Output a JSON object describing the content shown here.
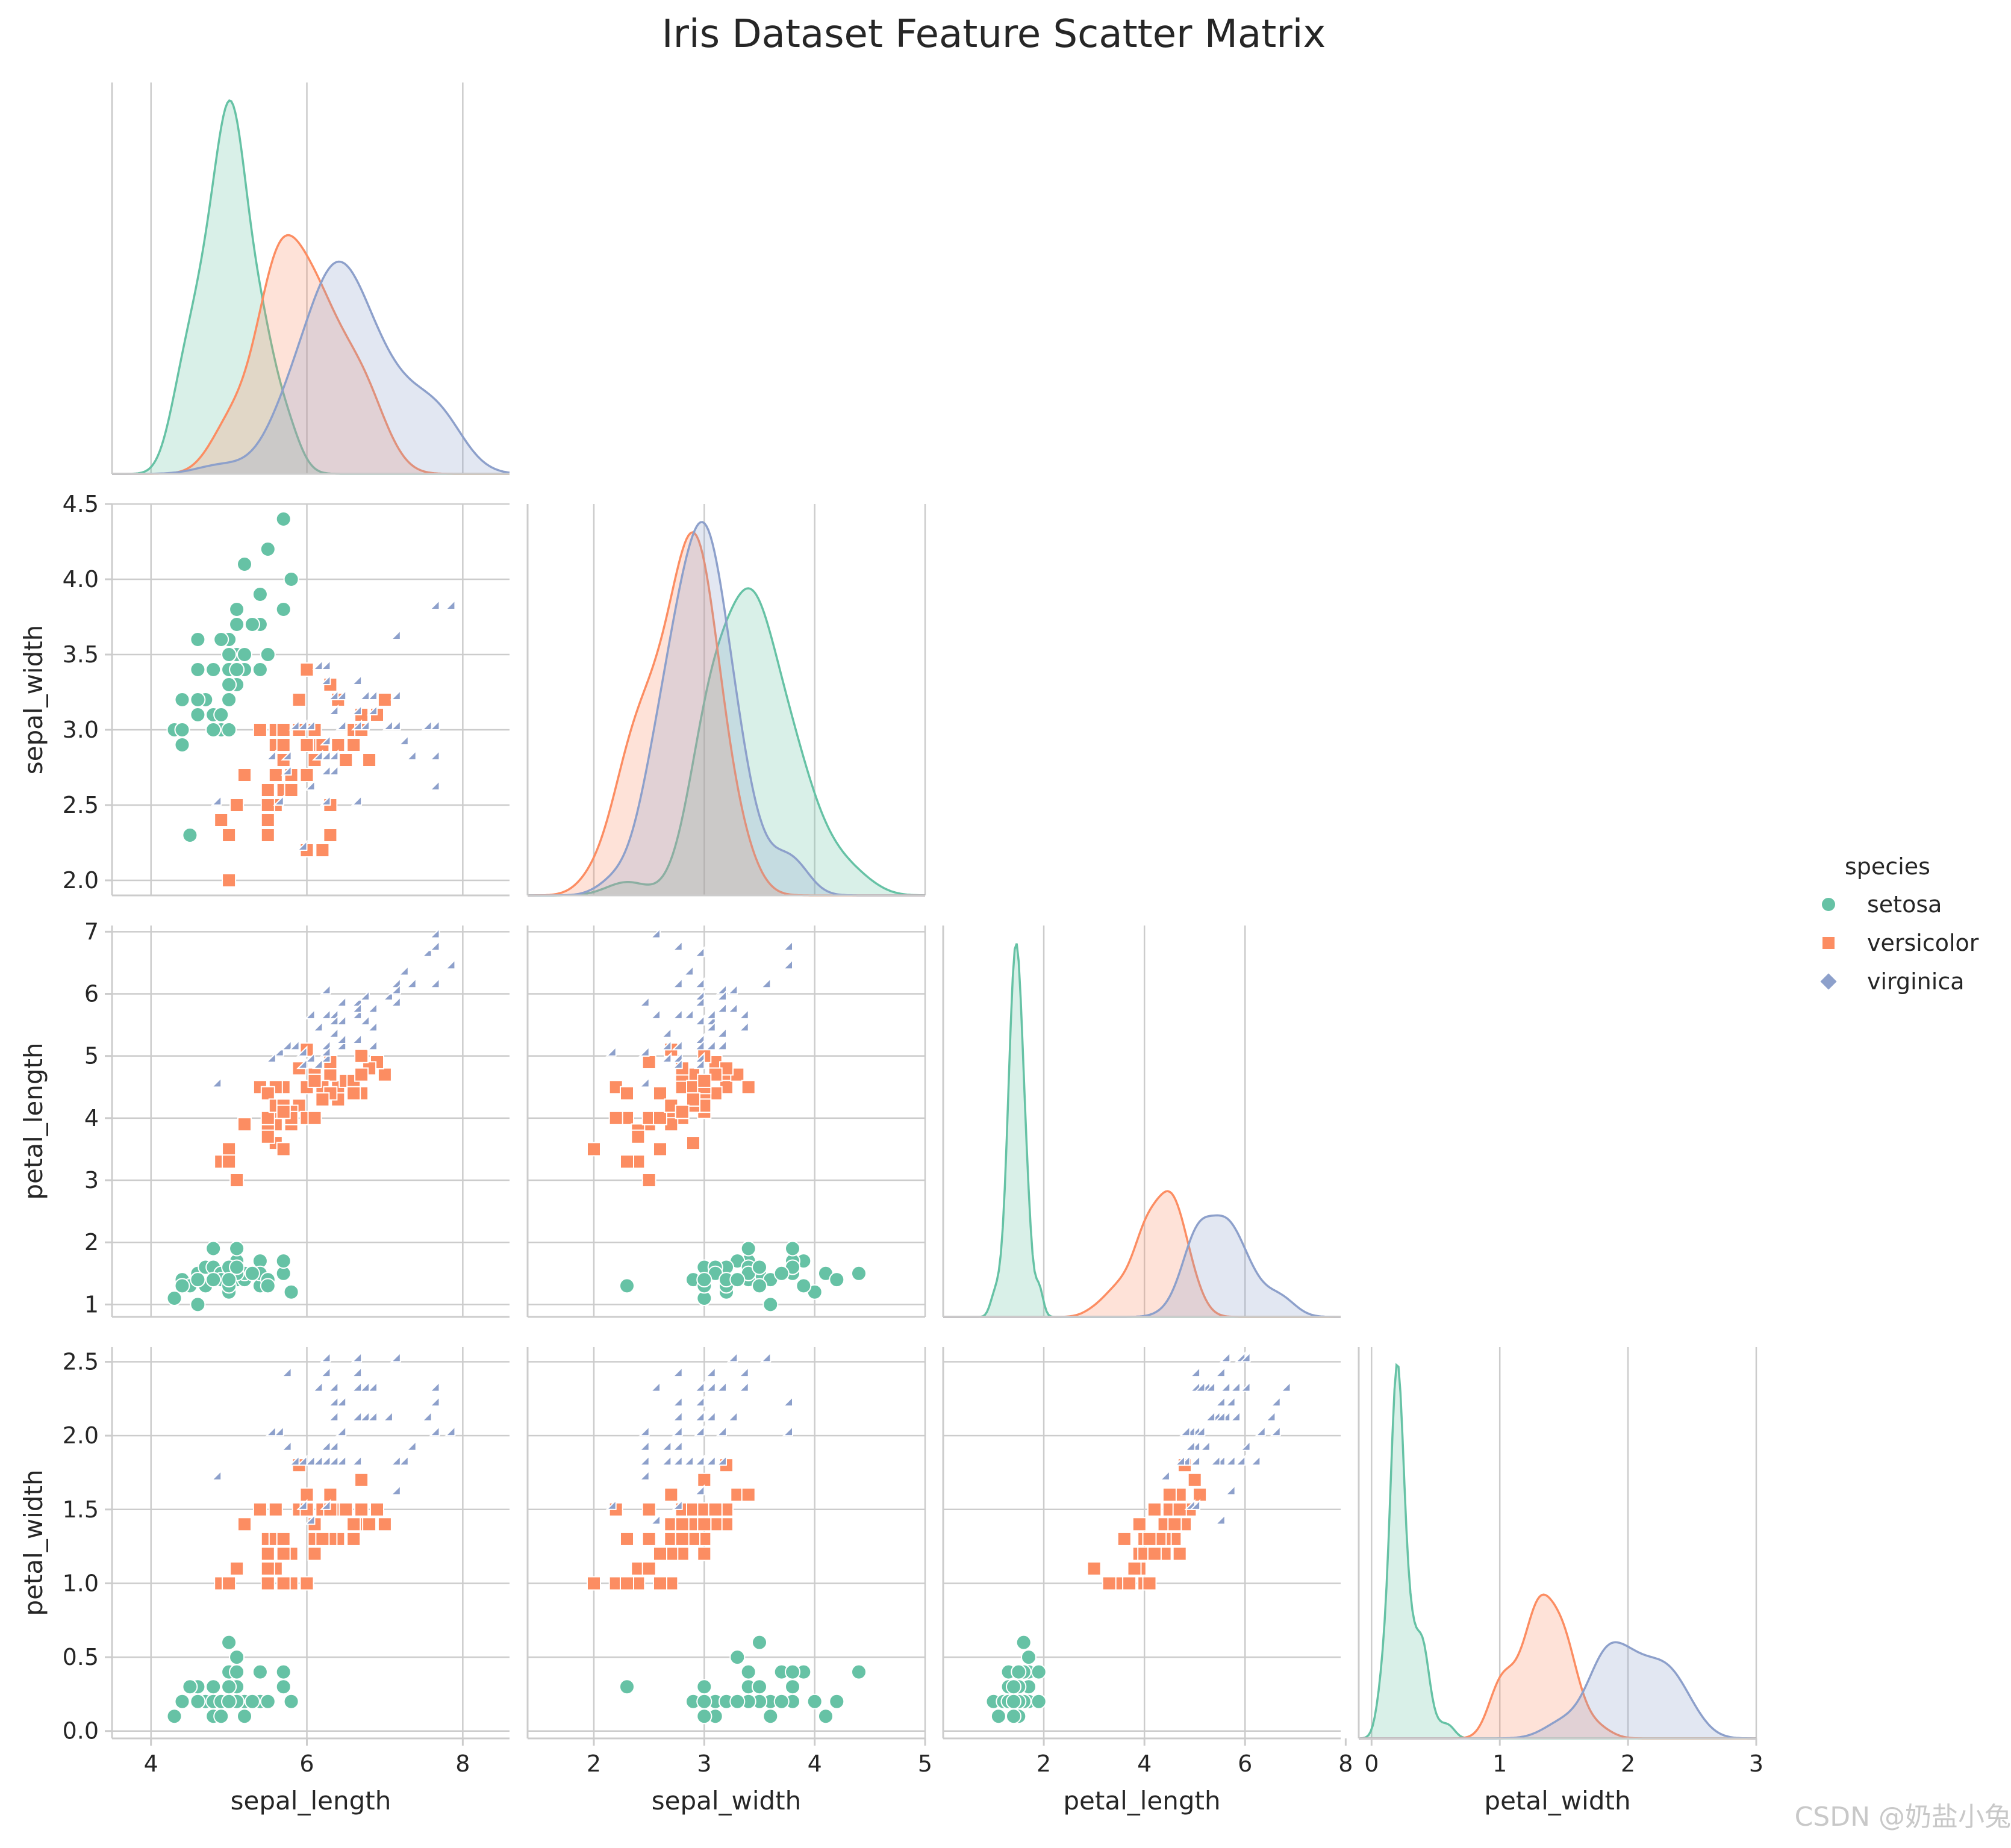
{
  "title": "Iris Dataset Feature Scatter Matrix",
  "watermark": "CSDN @奶盐小兔",
  "legend": {
    "title": "species",
    "items": [
      "setosa",
      "versicolor",
      "virginica"
    ]
  },
  "chart_data": {
    "type": "scatter",
    "title": "Iris Dataset Feature Scatter Matrix",
    "corner": true,
    "diagonal": "kde",
    "grid": true,
    "legend_position": "right",
    "variables": [
      "sepal_length",
      "sepal_width",
      "petal_length",
      "petal_width"
    ],
    "hue": "species",
    "colors": {
      "setosa": "#66c2a5",
      "versicolor": "#fc8d62",
      "virginica": "#8da0cb"
    },
    "markers": {
      "setosa": "circle",
      "versicolor": "square",
      "virginica": "diamond"
    },
    "axes": {
      "sepal_length": {
        "label": "sepal_length",
        "ticks": [
          4,
          6,
          8
        ],
        "tick_labels": [
          "4",
          "6",
          "8"
        ],
        "range": [
          3.5,
          8.6
        ]
      },
      "sepal_width": {
        "label": "sepal_width",
        "ticks": [
          2,
          3,
          4,
          5
        ],
        "tick_labels": [
          "2",
          "3",
          "4",
          "5"
        ],
        "y_ticks": [
          2.0,
          2.5,
          3.0,
          3.5,
          4.0,
          4.5
        ],
        "y_tick_labels": [
          "2.0",
          "2.5",
          "3.0",
          "3.5",
          "4.0",
          "4.5"
        ],
        "range": [
          1.4,
          5.0
        ],
        "y_range": [
          1.9,
          4.5
        ]
      },
      "petal_length": {
        "label": "petal_length",
        "ticks": [
          2,
          4,
          6,
          8
        ],
        "tick_labels": [
          "2",
          "4",
          "6",
          "8"
        ],
        "y_ticks": [
          1,
          2,
          3,
          4,
          5,
          6,
          7
        ],
        "y_tick_labels": [
          "1",
          "2",
          "3",
          "4",
          "5",
          "6",
          "7"
        ],
        "range": [
          0.0,
          7.9
        ],
        "y_range": [
          0.8,
          7.1
        ]
      },
      "petal_width": {
        "label": "petal_width",
        "ticks": [
          0,
          1,
          2,
          3
        ],
        "tick_labels": [
          "0",
          "1",
          "2",
          "3"
        ],
        "y_ticks": [
          0.0,
          0.5,
          1.0,
          1.5,
          2.0,
          2.5
        ],
        "y_tick_labels": [
          "0.0",
          "0.5",
          "1.0",
          "1.5",
          "2.0",
          "2.5"
        ],
        "range": [
          -0.1,
          3.0
        ],
        "y_range": [
          -0.05,
          2.6
        ]
      }
    },
    "series": [
      {
        "name": "setosa",
        "points": [
          [
            5.1,
            3.5,
            1.4,
            0.2
          ],
          [
            4.9,
            3.0,
            1.4,
            0.2
          ],
          [
            4.7,
            3.2,
            1.3,
            0.2
          ],
          [
            4.6,
            3.1,
            1.5,
            0.2
          ],
          [
            5.0,
            3.6,
            1.4,
            0.2
          ],
          [
            5.4,
            3.9,
            1.7,
            0.4
          ],
          [
            4.6,
            3.4,
            1.4,
            0.3
          ],
          [
            5.0,
            3.4,
            1.5,
            0.2
          ],
          [
            4.4,
            2.9,
            1.4,
            0.2
          ],
          [
            4.9,
            3.1,
            1.5,
            0.1
          ],
          [
            5.4,
            3.7,
            1.5,
            0.2
          ],
          [
            4.8,
            3.4,
            1.6,
            0.2
          ],
          [
            4.8,
            3.0,
            1.4,
            0.1
          ],
          [
            4.3,
            3.0,
            1.1,
            0.1
          ],
          [
            5.8,
            4.0,
            1.2,
            0.2
          ],
          [
            5.7,
            4.4,
            1.5,
            0.4
          ],
          [
            5.4,
            3.9,
            1.3,
            0.4
          ],
          [
            5.1,
            3.5,
            1.4,
            0.3
          ],
          [
            5.7,
            3.8,
            1.7,
            0.3
          ],
          [
            5.1,
            3.8,
            1.5,
            0.3
          ],
          [
            5.4,
            3.4,
            1.7,
            0.2
          ],
          [
            5.1,
            3.7,
            1.5,
            0.4
          ],
          [
            4.6,
            3.6,
            1.0,
            0.2
          ],
          [
            5.1,
            3.3,
            1.7,
            0.5
          ],
          [
            4.8,
            3.4,
            1.9,
            0.2
          ],
          [
            5.0,
            3.0,
            1.6,
            0.2
          ],
          [
            5.0,
            3.4,
            1.6,
            0.4
          ],
          [
            5.2,
            3.5,
            1.5,
            0.2
          ],
          [
            5.2,
            3.4,
            1.4,
            0.2
          ],
          [
            4.7,
            3.2,
            1.6,
            0.2
          ],
          [
            4.8,
            3.1,
            1.6,
            0.2
          ],
          [
            5.4,
            3.4,
            1.5,
            0.4
          ],
          [
            5.2,
            4.1,
            1.5,
            0.1
          ],
          [
            5.5,
            4.2,
            1.4,
            0.2
          ],
          [
            4.9,
            3.1,
            1.5,
            0.2
          ],
          [
            5.0,
            3.2,
            1.2,
            0.2
          ],
          [
            5.5,
            3.5,
            1.3,
            0.2
          ],
          [
            4.9,
            3.6,
            1.4,
            0.1
          ],
          [
            4.4,
            3.0,
            1.3,
            0.2
          ],
          [
            5.1,
            3.4,
            1.5,
            0.2
          ],
          [
            5.0,
            3.5,
            1.3,
            0.3
          ],
          [
            4.5,
            2.3,
            1.3,
            0.3
          ],
          [
            4.4,
            3.2,
            1.3,
            0.2
          ],
          [
            5.0,
            3.5,
            1.6,
            0.6
          ],
          [
            5.1,
            3.8,
            1.9,
            0.4
          ],
          [
            4.8,
            3.0,
            1.4,
            0.3
          ],
          [
            5.1,
            3.8,
            1.6,
            0.2
          ],
          [
            4.6,
            3.2,
            1.4,
            0.2
          ],
          [
            5.3,
            3.7,
            1.5,
            0.2
          ],
          [
            5.0,
            3.3,
            1.4,
            0.2
          ]
        ]
      },
      {
        "name": "versicolor",
        "points": [
          [
            7.0,
            3.2,
            4.7,
            1.4
          ],
          [
            6.4,
            3.2,
            4.5,
            1.5
          ],
          [
            6.9,
            3.1,
            4.9,
            1.5
          ],
          [
            5.5,
            2.3,
            4.0,
            1.3
          ],
          [
            6.5,
            2.8,
            4.6,
            1.5
          ],
          [
            5.7,
            2.8,
            4.5,
            1.3
          ],
          [
            6.3,
            3.3,
            4.7,
            1.6
          ],
          [
            4.9,
            2.4,
            3.3,
            1.0
          ],
          [
            6.6,
            2.9,
            4.6,
            1.3
          ],
          [
            5.2,
            2.7,
            3.9,
            1.4
          ],
          [
            5.0,
            2.0,
            3.5,
            1.0
          ],
          [
            5.9,
            3.0,
            4.2,
            1.5
          ],
          [
            6.0,
            2.2,
            4.0,
            1.0
          ],
          [
            6.1,
            2.9,
            4.7,
            1.4
          ],
          [
            5.6,
            2.9,
            3.6,
            1.3
          ],
          [
            6.7,
            3.1,
            4.4,
            1.4
          ],
          [
            5.6,
            3.0,
            4.5,
            1.5
          ],
          [
            5.8,
            2.7,
            4.1,
            1.0
          ],
          [
            6.2,
            2.2,
            4.5,
            1.5
          ],
          [
            5.6,
            2.5,
            3.9,
            1.1
          ],
          [
            5.9,
            3.2,
            4.8,
            1.8
          ],
          [
            6.1,
            2.8,
            4.0,
            1.3
          ],
          [
            6.3,
            2.5,
            4.9,
            1.5
          ],
          [
            6.1,
            2.8,
            4.7,
            1.2
          ],
          [
            6.4,
            2.9,
            4.3,
            1.3
          ],
          [
            6.6,
            3.0,
            4.4,
            1.4
          ],
          [
            6.8,
            2.8,
            4.8,
            1.4
          ],
          [
            6.7,
            3.0,
            5.0,
            1.7
          ],
          [
            6.0,
            2.9,
            4.5,
            1.5
          ],
          [
            5.7,
            2.6,
            3.5,
            1.0
          ],
          [
            5.5,
            2.4,
            3.8,
            1.1
          ],
          [
            5.5,
            2.4,
            3.7,
            1.0
          ],
          [
            5.8,
            2.7,
            3.9,
            1.2
          ],
          [
            6.0,
            2.7,
            5.1,
            1.6
          ],
          [
            5.4,
            3.0,
            4.5,
            1.5
          ],
          [
            6.0,
            3.4,
            4.5,
            1.6
          ],
          [
            6.7,
            3.1,
            4.7,
            1.5
          ],
          [
            6.3,
            2.3,
            4.4,
            1.3
          ],
          [
            5.6,
            3.0,
            4.1,
            1.3
          ],
          [
            5.5,
            2.5,
            4.0,
            1.3
          ],
          [
            5.5,
            2.6,
            4.4,
            1.2
          ],
          [
            6.1,
            3.0,
            4.6,
            1.4
          ],
          [
            5.8,
            2.6,
            4.0,
            1.2
          ],
          [
            5.0,
            2.3,
            3.3,
            1.0
          ],
          [
            5.6,
            2.7,
            4.2,
            1.3
          ],
          [
            5.7,
            3.0,
            4.2,
            1.2
          ],
          [
            5.7,
            2.9,
            4.2,
            1.3
          ],
          [
            6.2,
            2.9,
            4.3,
            1.3
          ],
          [
            5.1,
            2.5,
            3.0,
            1.1
          ],
          [
            5.7,
            2.8,
            4.1,
            1.3
          ]
        ]
      },
      {
        "name": "virginica",
        "points": [
          [
            6.3,
            3.3,
            6.0,
            2.5
          ],
          [
            5.8,
            2.7,
            5.1,
            1.9
          ],
          [
            7.1,
            3.0,
            5.9,
            2.1
          ],
          [
            6.3,
            2.9,
            5.6,
            1.8
          ],
          [
            6.5,
            3.0,
            5.8,
            2.2
          ],
          [
            7.6,
            3.0,
            6.6,
            2.1
          ],
          [
            4.9,
            2.5,
            4.5,
            1.7
          ],
          [
            7.3,
            2.9,
            6.3,
            1.8
          ],
          [
            6.7,
            2.5,
            5.8,
            1.8
          ],
          [
            7.2,
            3.6,
            6.1,
            2.5
          ],
          [
            6.5,
            3.2,
            5.1,
            2.0
          ],
          [
            6.4,
            2.7,
            5.3,
            1.9
          ],
          [
            6.8,
            3.0,
            5.5,
            2.1
          ],
          [
            5.7,
            2.5,
            5.0,
            2.0
          ],
          [
            5.8,
            2.8,
            5.1,
            2.4
          ],
          [
            6.4,
            3.2,
            5.3,
            2.3
          ],
          [
            6.5,
            3.0,
            5.5,
            1.8
          ],
          [
            7.7,
            3.8,
            6.7,
            2.2
          ],
          [
            7.7,
            2.6,
            6.9,
            2.3
          ],
          [
            6.0,
            2.2,
            5.0,
            1.5
          ],
          [
            6.9,
            3.2,
            5.7,
            2.3
          ],
          [
            5.6,
            2.8,
            4.9,
            2.0
          ],
          [
            7.7,
            2.8,
            6.7,
            2.0
          ],
          [
            6.3,
            2.7,
            4.9,
            1.8
          ],
          [
            6.7,
            3.3,
            5.7,
            2.1
          ],
          [
            7.2,
            3.2,
            6.0,
            1.8
          ],
          [
            6.2,
            2.8,
            4.8,
            1.8
          ],
          [
            6.1,
            3.0,
            4.9,
            1.8
          ],
          [
            6.4,
            2.8,
            5.6,
            2.1
          ],
          [
            7.2,
            3.0,
            5.8,
            1.6
          ],
          [
            7.4,
            2.8,
            6.1,
            1.9
          ],
          [
            7.9,
            3.8,
            6.4,
            2.0
          ],
          [
            6.4,
            2.8,
            5.6,
            2.2
          ],
          [
            6.3,
            2.8,
            5.1,
            1.5
          ],
          [
            6.1,
            2.6,
            5.6,
            1.4
          ],
          [
            7.7,
            3.0,
            6.1,
            2.3
          ],
          [
            6.3,
            3.4,
            5.6,
            2.4
          ],
          [
            6.4,
            3.1,
            5.5,
            1.8
          ],
          [
            6.0,
            3.0,
            4.8,
            1.8
          ],
          [
            6.9,
            3.1,
            5.4,
            2.1
          ],
          [
            6.7,
            3.1,
            5.6,
            2.4
          ],
          [
            6.9,
            3.1,
            5.1,
            2.3
          ],
          [
            5.8,
            2.7,
            5.1,
            1.9
          ],
          [
            6.8,
            3.2,
            5.9,
            2.3
          ],
          [
            6.7,
            3.3,
            5.7,
            2.5
          ],
          [
            6.7,
            3.0,
            5.2,
            2.3
          ],
          [
            6.3,
            2.5,
            5.0,
            1.9
          ],
          [
            6.5,
            3.0,
            5.2,
            2.0
          ],
          [
            6.2,
            3.4,
            5.4,
            2.3
          ],
          [
            5.9,
            3.0,
            5.1,
            1.8
          ]
        ]
      }
    ]
  }
}
